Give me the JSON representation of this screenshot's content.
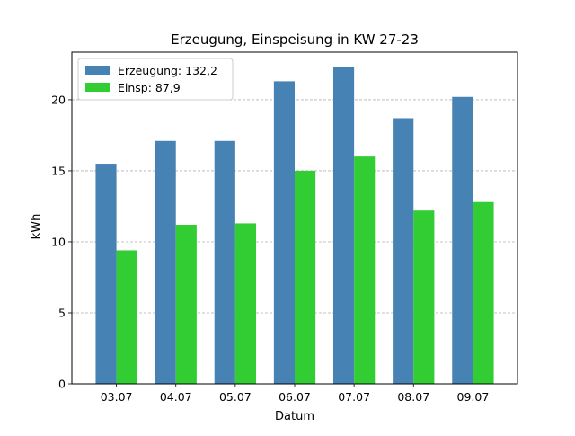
{
  "chart_data": {
    "type": "bar",
    "title": "Erzeugung, Einspeisung in KW 27-23",
    "xlabel": "Datum",
    "ylabel": "kWh",
    "categories": [
      "03.07",
      "04.07",
      "05.07",
      "06.07",
      "07.07",
      "08.07",
      "09.07"
    ],
    "ylim": [
      0,
      23.35
    ],
    "yticks": [
      0,
      5,
      10,
      15,
      20
    ],
    "grid": "y-dashed",
    "legend_position": "top-left",
    "series": [
      {
        "name": "Erzeugung: 132,2",
        "color": "#4682b4",
        "values": [
          15.5,
          17.1,
          17.1,
          21.3,
          22.3,
          18.7,
          20.2
        ]
      },
      {
        "name": "Einsp: 87,9",
        "color": "#32cd32",
        "values": [
          9.4,
          11.2,
          11.3,
          15.0,
          16.0,
          12.2,
          12.8
        ]
      }
    ]
  }
}
